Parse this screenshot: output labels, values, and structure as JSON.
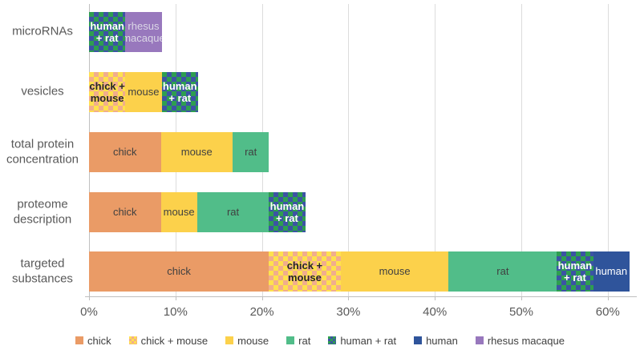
{
  "chart_data": {
    "type": "bar",
    "orientation": "horizontal",
    "stacked": true,
    "title": "",
    "xlabel": "",
    "ylabel": "",
    "xlim": [
      0,
      63
    ],
    "grid": true,
    "legend_position": "bottom",
    "x_tick_labels": [
      "0%",
      "10%",
      "20%",
      "30%",
      "40%",
      "50%",
      "60%"
    ],
    "x_tick_values": [
      0,
      10,
      20,
      30,
      40,
      50,
      60
    ],
    "categories": [
      "microRNAs",
      "vesicles",
      "total protein concentration",
      "proteome description",
      "targeted substances"
    ],
    "series": [
      {
        "name": "chick",
        "color": "#EA9B66",
        "pattern_color": null,
        "values": [
          0,
          0,
          8.3,
          8.3,
          20.8
        ],
        "label_lines": [
          "chick"
        ],
        "label_color": "#404040",
        "label_bold": false
      },
      {
        "name": "chick + mouse",
        "color": "#FFE14D",
        "pattern_color": "#F1AE8C",
        "values": [
          0,
          4.2,
          0,
          0,
          8.3
        ],
        "label_lines": [
          "chick +",
          "mouse"
        ],
        "label_color": "#262626",
        "label_bold": true
      },
      {
        "name": "mouse",
        "color": "#FCD14B",
        "pattern_color": null,
        "values": [
          0,
          4.2,
          8.3,
          4.2,
          12.5
        ],
        "label_lines": [
          "mouse"
        ],
        "label_color": "#404040",
        "label_bold": false
      },
      {
        "name": "rat",
        "color": "#51BD89",
        "pattern_color": null,
        "values": [
          0,
          0,
          4.2,
          8.3,
          12.5
        ],
        "label_lines": [
          "rat"
        ],
        "label_color": "#404040",
        "label_bold": false
      },
      {
        "name": "human + rat",
        "color": "#2E9E50",
        "pattern_color": "#3C53A4",
        "values": [
          4.2,
          4.2,
          0,
          4.2,
          4.2
        ],
        "label_lines": [
          "human",
          "+ rat"
        ],
        "label_color": "#FFFFFF",
        "label_bold": true
      },
      {
        "name": "human",
        "color": "#2F549B",
        "pattern_color": null,
        "values": [
          0,
          0,
          0,
          0,
          4.2
        ],
        "label_lines": [
          "human"
        ],
        "label_color": "#FFFFFF",
        "label_bold": false
      },
      {
        "name": "rhesus macaque",
        "color": "#9878BD",
        "pattern_color": null,
        "values": [
          4.2,
          0,
          0,
          0,
          0
        ],
        "label_lines": [
          "rhesus",
          "macaque"
        ],
        "label_color": "#DBD7E6",
        "label_bold": false
      }
    ],
    "axis_color": "#bfbfbf",
    "gridline_color": "#dcdcdc",
    "axis_text_color": "#595959",
    "legend_text_color": "#404040"
  }
}
